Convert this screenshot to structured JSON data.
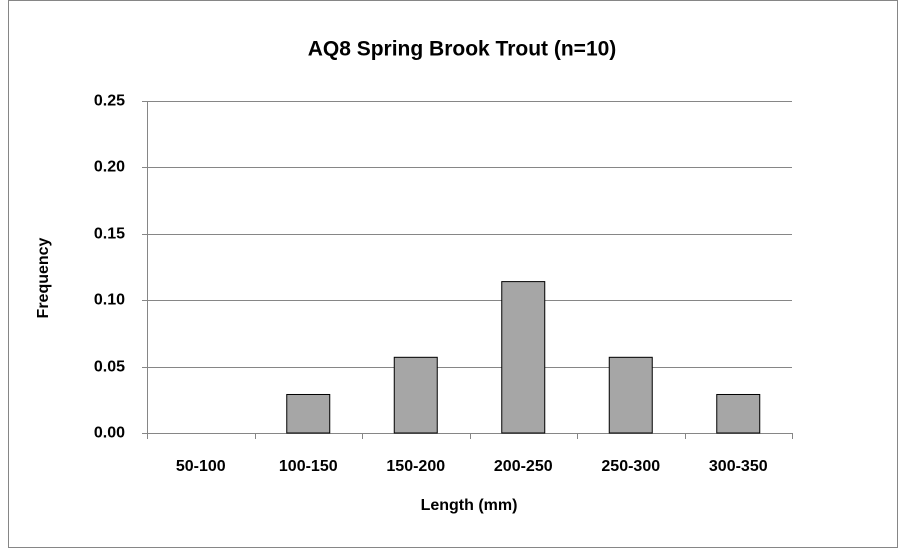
{
  "chart_data": {
    "type": "bar",
    "title": "AQ8  Spring  Brook Trout (n=10)",
    "x_label": "Length (mm)",
    "y_label": "Frequency",
    "categories": [
      "50-100",
      "100-150",
      "150-200",
      "200-250",
      "250-300",
      "300-350"
    ],
    "values": [
      0,
      0.029,
      0.057,
      0.114,
      0.057,
      0.029
    ],
    "color": "#a6a6a6",
    "ylim": [
      0,
      0.25
    ],
    "yticks": [
      {
        "value": 0,
        "label": "0.00"
      },
      {
        "value": 0.05,
        "label": "0.05"
      },
      {
        "value": 0.1,
        "label": "0.10"
      },
      {
        "value": 0.15,
        "label": "0.15"
      },
      {
        "value": 0.2,
        "label": "0.20"
      },
      {
        "value": 0.25,
        "label": "0.25"
      }
    ],
    "grid": true
  }
}
